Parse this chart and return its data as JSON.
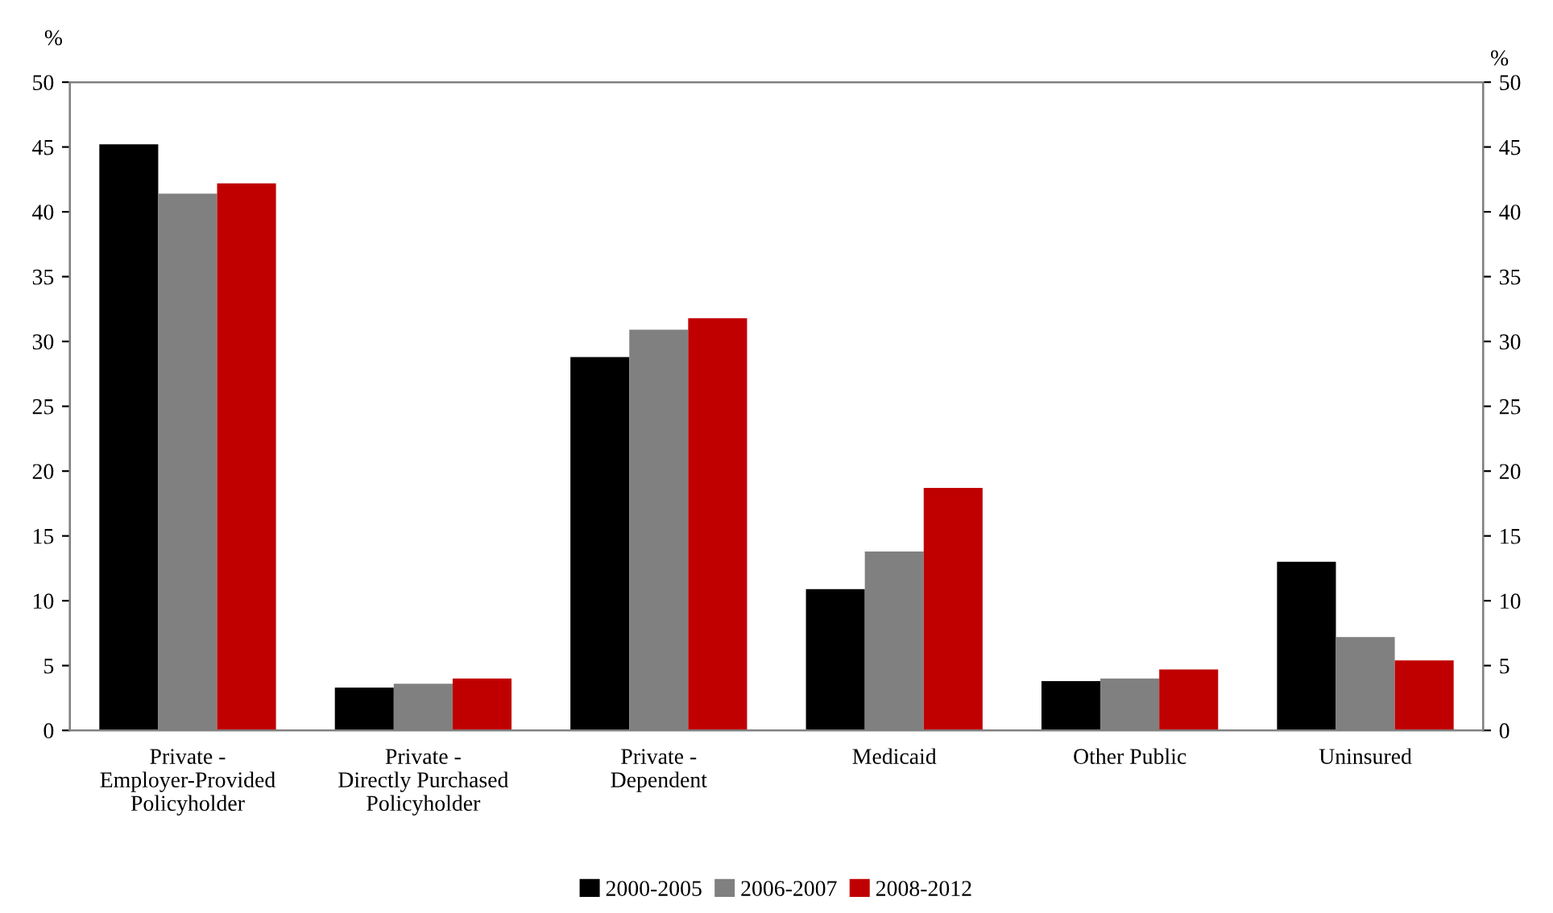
{
  "chart_data": {
    "type": "bar",
    "categories": [
      "Private -\nEmployer-Provided\nPolicyholder",
      "Private -\nDirectly Purchased\nPolicyholder",
      "Private -\nDependent",
      "Medicaid",
      "Other Public",
      "Uninsured"
    ],
    "series": [
      {
        "name": "2000-2005",
        "color": "#000000",
        "values": [
          45.2,
          3.3,
          28.8,
          10.9,
          3.8,
          13.0
        ]
      },
      {
        "name": "2006-2007",
        "color": "#808080",
        "values": [
          41.4,
          3.6,
          30.9,
          13.8,
          4.0,
          7.2
        ]
      },
      {
        "name": "2008-2012",
        "color": "#c00000",
        "values": [
          42.2,
          4.0,
          31.8,
          18.7,
          4.7,
          5.4
        ]
      }
    ],
    "ylabel": "%",
    "y2label": "%",
    "ylim": [
      0,
      50
    ],
    "yticks": [
      0,
      5,
      10,
      15,
      20,
      25,
      30,
      35,
      40,
      45,
      50
    ],
    "y2lim": [
      0,
      50
    ],
    "y2ticks": [
      0,
      5,
      10,
      15,
      20,
      25,
      30,
      35,
      40,
      45,
      50
    ],
    "grid": false,
    "legend": "bottom"
  }
}
